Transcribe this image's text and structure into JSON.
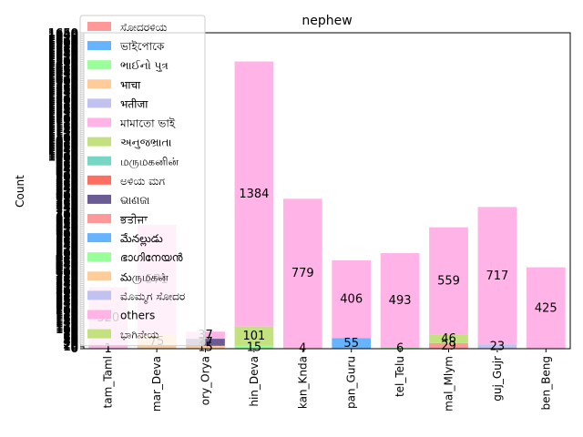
{
  "chart_data": {
    "type": "bar",
    "stacked": true,
    "title": "nephew",
    "xlabel": "",
    "ylabel": "Count",
    "ylim": [
      0,
      1650
    ],
    "categories": [
      "tam_Taml",
      "mar_Deva",
      "ory_Orya",
      "hin_Deva",
      "kan_Knda",
      "pan_Guru",
      "tel_Telu",
      "mal_Mlym",
      "guj_Gujr",
      "ben_Beng"
    ],
    "series": [
      {
        "name": "ಸೋದರಳಿಯ",
        "color": "#ff9999",
        "values": [
          1,
          0,
          0,
          0,
          4,
          0,
          0,
          29,
          0,
          0
        ]
      },
      {
        "name": "ভাইপোকে",
        "color": "#66b3ff",
        "values": [
          0,
          0,
          0,
          0,
          0,
          55,
          0,
          0,
          0,
          0
        ]
      },
      {
        "name": "ભાઈનો પુત્ર",
        "color": "#99ff99",
        "values": [
          0,
          0,
          0,
          15,
          0,
          0,
          6,
          0,
          0,
          0
        ]
      },
      {
        "name": "भाचा",
        "color": "#ffcc99",
        "values": [
          0,
          75,
          15,
          0,
          0,
          0,
          0,
          0,
          0,
          0
        ]
      },
      {
        "name": "भतीजा",
        "color": "#c2c2f0",
        "values": [
          0,
          0,
          0,
          0,
          0,
          0,
          0,
          0,
          23,
          0
        ]
      },
      {
        "name": "মামাতো ভাই",
        "color": "#ffb3e6",
        "values": [
          0,
          0,
          0,
          0,
          0,
          0,
          0,
          0,
          0,
          0
        ]
      },
      {
        "name": "અનુજભ્રાતા",
        "color": "#c4e17f",
        "values": [
          0,
          0,
          0,
          101,
          0,
          0,
          0,
          46,
          0,
          0
        ]
      },
      {
        "name": "மருமகனின்",
        "color": "#76d7c4",
        "values": [
          0,
          0,
          0,
          0,
          0,
          0,
          0,
          0,
          0,
          0
        ]
      },
      {
        "name": "ಅಳಿಯ ಮಗ",
        "color": "#ff6f61",
        "values": [
          0,
          0,
          0,
          0,
          0,
          0,
          0,
          0,
          0,
          0
        ]
      },
      {
        "name": "ଭାଣଜା",
        "color": "#6b5b95",
        "values": [
          0,
          0,
          37,
          0,
          0,
          0,
          0,
          0,
          0,
          0
        ]
      },
      {
        "name": "ਭਤੀਜਾ",
        "color": "#ff9999",
        "values": [
          0,
          0,
          0,
          0,
          0,
          0,
          0,
          0,
          0,
          0
        ]
      },
      {
        "name": "మేనల్లుడు",
        "color": "#66b3ff",
        "values": [
          0,
          0,
          0,
          0,
          0,
          0,
          0,
          0,
          0,
          0
        ]
      },
      {
        "name": "ഭാഗിനേയൻ",
        "color": "#99ff99",
        "values": [
          0,
          0,
          0,
          0,
          0,
          0,
          0,
          0,
          0,
          0
        ]
      },
      {
        "name": "మருமகன்",
        "color": "#ffcc99",
        "values": [
          0,
          0,
          0,
          0,
          0,
          0,
          0,
          0,
          0,
          0
        ]
      },
      {
        "name": "ಮೊಮ್ಮಗ ಸೋದರ",
        "color": "#c2c2f0",
        "values": [
          0,
          0,
          0,
          0,
          0,
          0,
          0,
          0,
          0,
          0
        ]
      },
      {
        "name": "others",
        "color": "#ffb3e6",
        "values": [
          320,
          571,
          37,
          1384,
          779,
          406,
          493,
          559,
          717,
          425
        ]
      },
      {
        "name": "ಭಾಗಿನೇಯ",
        "color": "#c4e17f",
        "values": [
          0,
          0,
          0,
          0,
          0,
          0,
          0,
          0,
          0,
          0
        ]
      }
    ],
    "legend_position": "top-left",
    "grid": false
  }
}
